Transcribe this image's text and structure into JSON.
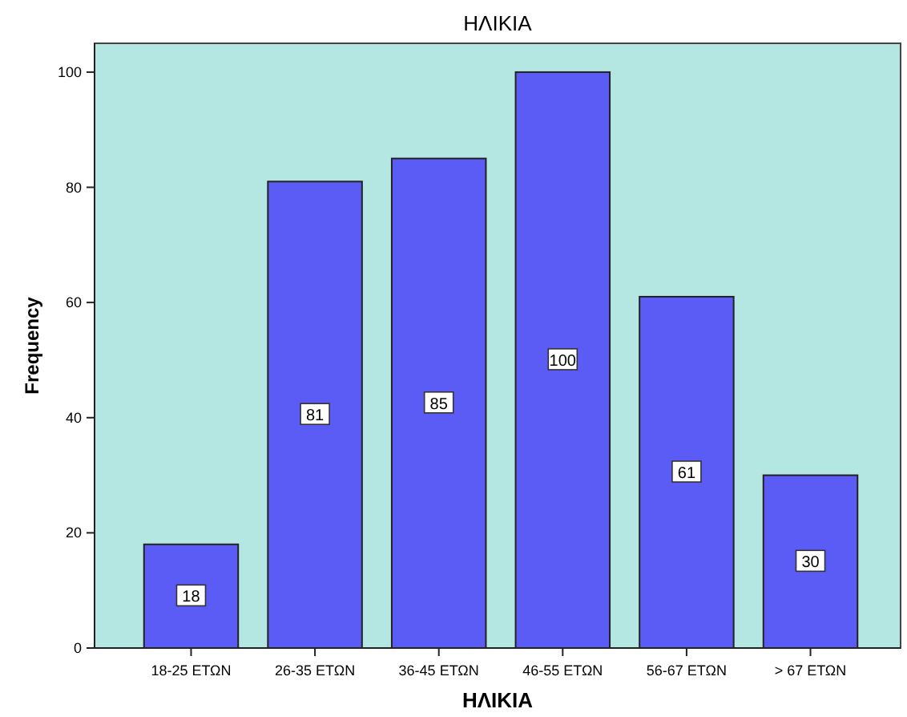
{
  "chart_data": {
    "type": "bar",
    "title": "ΗΛΙΚΙΑ",
    "xlabel": "ΗΛΙΚΙΑ",
    "ylabel": "Frequency",
    "categories": [
      "18-25 ΕΤΩΝ",
      "26-35 ΕΤΩΝ",
      "36-45 ΕΤΩΝ",
      "46-55 ΕΤΩΝ",
      "56-67 ΕΤΩΝ",
      "> 67 ΕΤΩΝ"
    ],
    "values": [
      18,
      81,
      85,
      100,
      61,
      30
    ],
    "color": "#5b5bf5",
    "ylim": [
      0,
      105
    ],
    "yticks": [
      0,
      20,
      40,
      60,
      80,
      100
    ],
    "data_labels": true
  }
}
